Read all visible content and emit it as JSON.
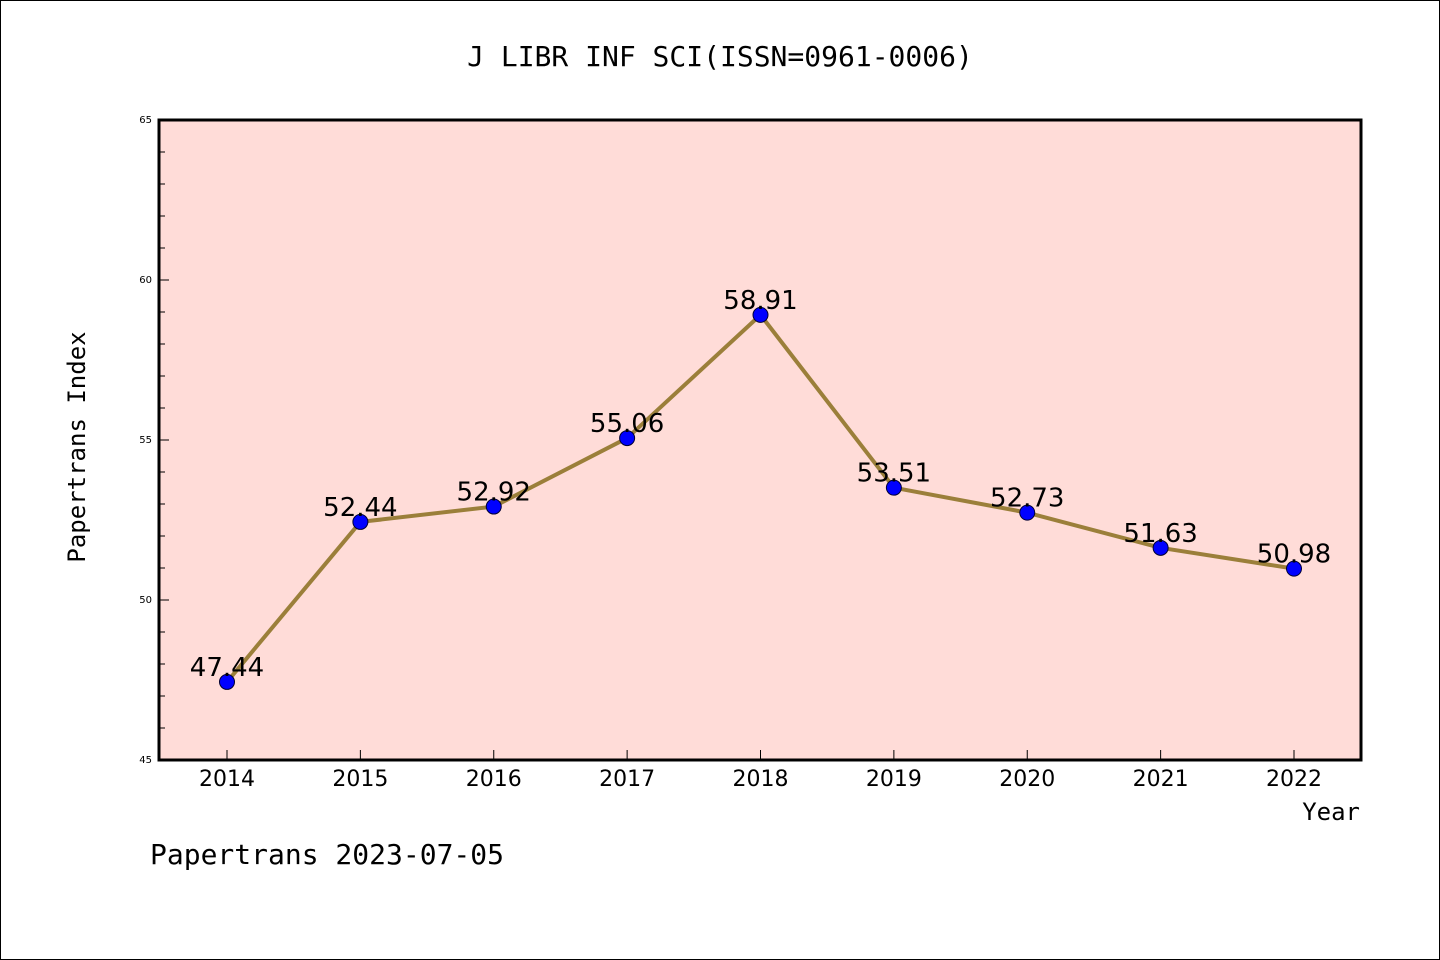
{
  "chart_data": {
    "type": "line",
    "title": "J LIBR INF SCI(ISSN=0961-0006)",
    "xlabel": "Year",
    "ylabel": "Papertrans Index",
    "categories": [
      "2014",
      "2015",
      "2016",
      "2017",
      "2018",
      "2019",
      "2020",
      "2021",
      "2022"
    ],
    "series": [
      {
        "values": [
          47.44,
          52.44,
          52.92,
          55.06,
          58.91,
          53.51,
          52.73,
          51.63,
          50.98
        ],
        "labels": [
          "47.44",
          "52.44",
          "52.92",
          "55.06",
          "58.91",
          "53.51",
          "52.73",
          "51.63",
          "50.98"
        ],
        "line_color": "#9b7f3a",
        "marker_color": "#0000ff"
      }
    ],
    "ylim": [
      45,
      65
    ],
    "yticks": [
      "45",
      "50",
      "55",
      "60",
      "65"
    ],
    "plot_background": "#ffdcd8",
    "grid": false,
    "legend": "none"
  },
  "footer": {
    "text": "Papertrans 2023-07-05"
  }
}
